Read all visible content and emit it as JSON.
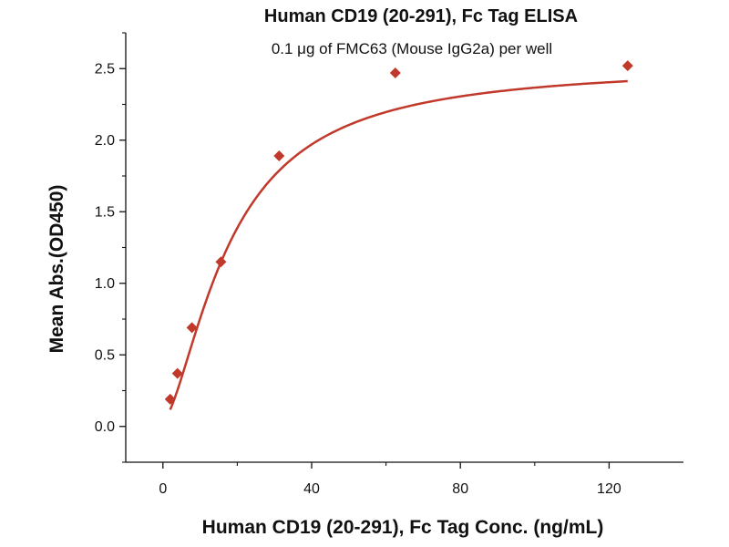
{
  "chart_data": {
    "type": "scatter",
    "title": "Human CD19 (20-291), Fc Tag ELISA",
    "subtitle": "0.1 μg of FMC63 (Mouse IgG2a) per well",
    "xlabel": "Human CD19 (20-291), Fc Tag Conc. (ng/mL)",
    "ylabel": "Mean Abs.(OD450)",
    "xlim": [
      -10,
      140
    ],
    "ylim": [
      -0.25,
      2.75
    ],
    "x_ticks": [
      0,
      40,
      80,
      120
    ],
    "x_tick_labels": [
      "0",
      "40",
      "80",
      "120"
    ],
    "y_ticks": [
      0.0,
      0.5,
      1.0,
      1.5,
      2.0,
      2.5
    ],
    "y_tick_labels": [
      "0.0",
      "0.5",
      "1.0",
      "1.5",
      "2.0",
      "2.5"
    ],
    "grid": false,
    "series": [
      {
        "x": [
          1.95,
          3.9,
          7.8,
          15.6,
          31.25,
          62.5,
          125
        ],
        "y": [
          0.19,
          0.37,
          0.69,
          1.15,
          1.89,
          2.47,
          2.52
        ],
        "marker": "diamond",
        "color": "#c0392b",
        "fit_curve": "dose-response"
      }
    ],
    "colors": {
      "series": "#c0392b",
      "axes": "#111111"
    }
  }
}
